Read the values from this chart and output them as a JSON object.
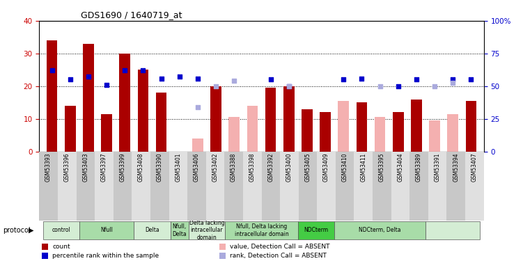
{
  "title": "GDS1690 / 1640719_at",
  "samples": [
    "GSM53393",
    "GSM53396",
    "GSM53403",
    "GSM53397",
    "GSM53399",
    "GSM53408",
    "GSM53390",
    "GSM53401",
    "GSM53406",
    "GSM53402",
    "GSM53388",
    "GSM53398",
    "GSM53392",
    "GSM53400",
    "GSM53405",
    "GSM53409",
    "GSM53410",
    "GSM53411",
    "GSM53395",
    "GSM53404",
    "GSM53389",
    "GSM53391",
    "GSM53394",
    "GSM53407"
  ],
  "count_values": [
    34,
    14,
    33,
    11.5,
    30,
    25,
    18,
    null,
    4,
    20,
    10.5,
    14,
    19.5,
    20,
    13,
    12,
    null,
    15,
    null,
    12,
    16,
    null,
    null,
    15.5
  ],
  "count_absent": [
    null,
    null,
    null,
    null,
    null,
    null,
    null,
    null,
    4,
    null,
    10.5,
    14,
    null,
    null,
    null,
    null,
    15.5,
    null,
    10.5,
    null,
    null,
    9.5,
    11.5,
    null
  ],
  "rank_values_pct": [
    62,
    55,
    57.5,
    51,
    62,
    62,
    56,
    57.5,
    56,
    null,
    null,
    null,
    55,
    50,
    null,
    null,
    55,
    56,
    null,
    50,
    55,
    null,
    55,
    55
  ],
  "rank_absent_pct": [
    null,
    null,
    null,
    null,
    null,
    null,
    null,
    null,
    34,
    50,
    54,
    null,
    null,
    50,
    null,
    null,
    null,
    null,
    50,
    null,
    null,
    50,
    52.5,
    null
  ],
  "ylim_left": [
    0,
    40
  ],
  "ylim_right": [
    0,
    100
  ],
  "yticks_left": [
    0,
    10,
    20,
    30,
    40
  ],
  "yticks_right": [
    0,
    25,
    50,
    75,
    100
  ],
  "protocols": [
    {
      "label": "control",
      "start": 0,
      "end": 1,
      "color": "#d4edd4"
    },
    {
      "label": "Nfull",
      "start": 2,
      "end": 4,
      "color": "#a8dca8"
    },
    {
      "label": "Delta",
      "start": 5,
      "end": 6,
      "color": "#d4edd4"
    },
    {
      "label": "Nfull,\nDelta",
      "start": 7,
      "end": 7,
      "color": "#a8dca8"
    },
    {
      "label": "Delta lacking\nintracellular\ndomain",
      "start": 8,
      "end": 9,
      "color": "#d4edd4"
    },
    {
      "label": "Nfull, Delta lacking\nintracellular domain",
      "start": 10,
      "end": 13,
      "color": "#a8dca8"
    },
    {
      "label": "NDCterm",
      "start": 14,
      "end": 15,
      "color": "#44cc44"
    },
    {
      "label": "NDCterm, Delta",
      "start": 16,
      "end": 20,
      "color": "#a8dca8"
    },
    {
      "label": "",
      "start": 21,
      "end": 23,
      "color": "#d4edd4"
    }
  ],
  "bar_color_dark_red": "#aa0000",
  "bar_color_light_red": "#f4b0b0",
  "dot_color_dark_blue": "#0000cc",
  "dot_color_light_blue": "#aaaadd",
  "left_axis_color": "#cc0000",
  "right_axis_color": "#0000cc"
}
